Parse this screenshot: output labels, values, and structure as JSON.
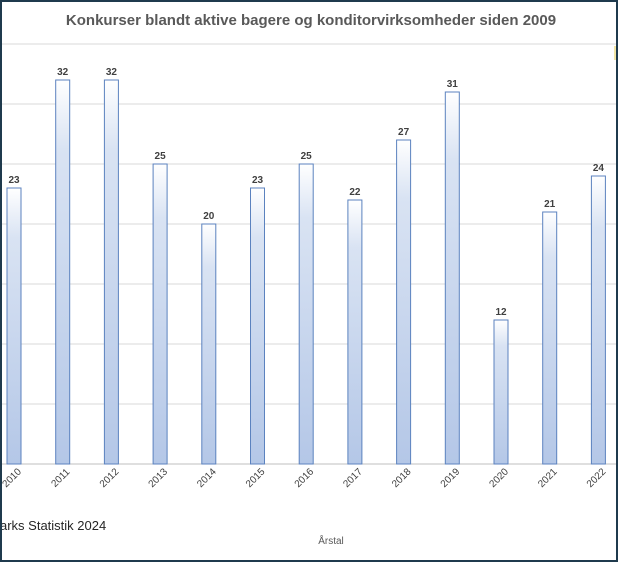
{
  "chart_data": {
    "type": "bar",
    "title": "Konkurser blandt aktive bagere og konditorvirksomheder siden 2009",
    "xlabel": "Årstal",
    "ylabel": "",
    "categories": [
      "2010",
      "2011",
      "2012",
      "2013",
      "2014",
      "2015",
      "2016",
      "2017",
      "2018",
      "2019",
      "2020",
      "2021",
      "2022"
    ],
    "values": [
      23,
      32,
      32,
      25,
      20,
      23,
      25,
      22,
      27,
      31,
      12,
      21,
      24
    ],
    "ylim": [
      0,
      35
    ],
    "grid": true,
    "bar_color_top": "#ffffff",
    "bar_color_bottom": "#b4c7e7",
    "bar_border": "#5b82bf",
    "source": "arks Statistik 2024"
  }
}
